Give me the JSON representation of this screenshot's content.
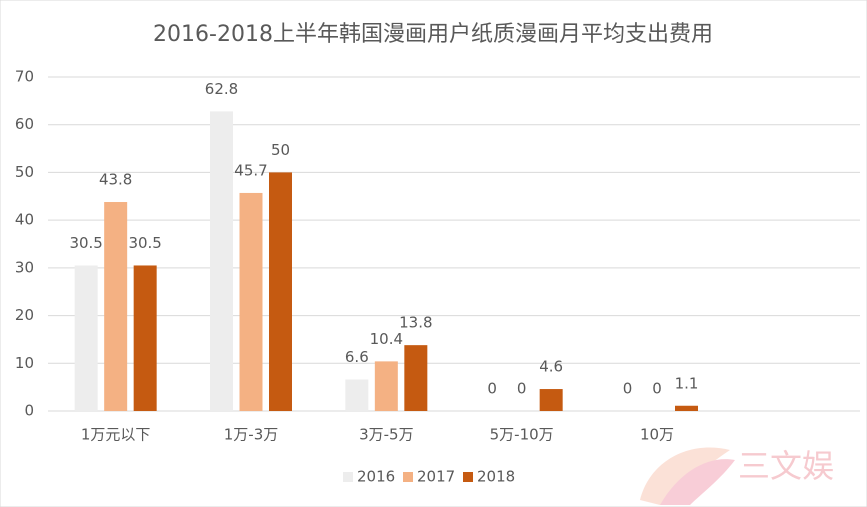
{
  "chart_data": {
    "type": "bar",
    "title": "2016-2018上半年韩国漫画用户纸质漫画月平均支出费用",
    "categories": [
      "1万元以下",
      "1万-3万",
      "3万-5万",
      "5万-10万",
      "10万",
      null
    ],
    "series": [
      {
        "name": "2016",
        "color": "#ededed",
        "values": [
          30.5,
          62.8,
          6.6,
          0,
          0,
          null
        ]
      },
      {
        "name": "2017",
        "color": "#f4b183",
        "values": [
          43.8,
          45.7,
          10.4,
          0,
          0,
          null
        ]
      },
      {
        "name": "2018",
        "color": "#c55a11",
        "values": [
          30.5,
          50,
          13.8,
          4.6,
          1.1,
          null
        ]
      }
    ],
    "ylim": [
      0,
      70
    ],
    "yticks": [
      0,
      10,
      20,
      30,
      40,
      50,
      60,
      70
    ],
    "grid": true,
    "legend": "bottom"
  },
  "watermark": "三文娱"
}
